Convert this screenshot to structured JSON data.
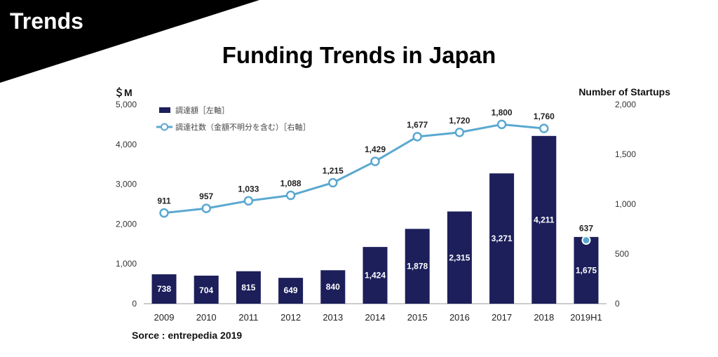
{
  "header": {
    "section_label": "Trends",
    "title": "Funding Trends in Japan"
  },
  "source": "Sorce : entrepedia 2019",
  "colors": {
    "bar": "#1c1f5a",
    "line": "#5aa8d0",
    "banner": "#000000"
  },
  "chart_data": {
    "type": "bar",
    "categories": [
      "2009",
      "2010",
      "2011",
      "2012",
      "2013",
      "2014",
      "2015",
      "2016",
      "2017",
      "2018",
      "2019H1"
    ],
    "series": [
      {
        "name": "調達額［左軸］",
        "type": "bar",
        "axis": "left",
        "values": [
          738,
          704,
          815,
          649,
          840,
          1424,
          1878,
          2315,
          3271,
          4211,
          1675
        ],
        "labels": [
          "738",
          "704",
          "815",
          "649",
          "840",
          "1,424",
          "1,878",
          "2,315",
          "3,271",
          "4,211",
          "1,675"
        ]
      },
      {
        "name": "調達社数（金額不明分を含む）［右軸］",
        "type": "line",
        "axis": "right",
        "values": [
          911,
          957,
          1033,
          1088,
          1215,
          1429,
          1677,
          1720,
          1800,
          1760,
          637
        ],
        "labels": [
          "911",
          "957",
          "1,033",
          "1,088",
          "1,215",
          "1,429",
          "1,677",
          "1,720",
          "1,800",
          "1,760",
          "637"
        ]
      }
    ],
    "y_left": {
      "label": "＄M",
      "range": [
        0,
        5000
      ],
      "ticks": [
        "0",
        "1,000",
        "2,000",
        "3,000",
        "4,000",
        "5,000"
      ],
      "tick_values": [
        0,
        1000,
        2000,
        3000,
        4000,
        5000
      ]
    },
    "y_right": {
      "label": "Number of Startups",
      "range": [
        0,
        2000
      ],
      "ticks": [
        "0",
        "500",
        "1,000",
        "1,500",
        "2,000"
      ],
      "tick_values": [
        0,
        500,
        1000,
        1500,
        2000
      ]
    },
    "grid": false,
    "legend_position": "top-left"
  }
}
